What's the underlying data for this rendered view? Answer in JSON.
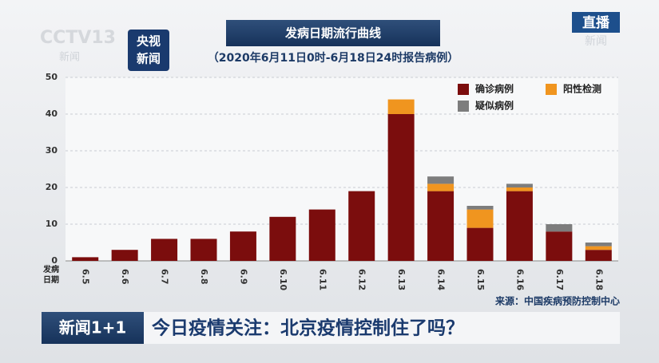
{
  "overlay": {
    "channel_logo": "CCTV13",
    "channel_sub": "新闻",
    "app_logo_top": "央视",
    "app_logo_bottom": "新闻",
    "live": "直播",
    "live_sub": "新闻",
    "program": "新闻1+1",
    "headline": "今日疫情关注：北京疫情控制住了吗？"
  },
  "chart_data": {
    "type": "bar",
    "stacked": true,
    "title": "发病日期流行曲线",
    "subtitle": "（2020年6月11日0时-6月18日24时报告病例）",
    "x_label": "发病日期",
    "source": "来源：中国疾病预防控制中心",
    "categories": [
      "6.5",
      "6.6",
      "6.7",
      "6.8",
      "6.9",
      "6.10",
      "6.11",
      "6.12",
      "6.13",
      "6.14",
      "6.15",
      "6.16",
      "6.17",
      "6.18"
    ],
    "series": [
      {
        "name": "确诊病例",
        "color": "#7b0d0d",
        "values": [
          1,
          3,
          6,
          6,
          8,
          12,
          14,
          19,
          40,
          19,
          9,
          19,
          8,
          3
        ]
      },
      {
        "name": "阳性检测",
        "color": "#f0951f",
        "values": [
          0,
          0,
          0,
          0,
          0,
          0,
          0,
          0,
          4,
          2,
          5,
          1,
          0,
          1
        ]
      },
      {
        "name": "疑似病例",
        "color": "#7d7d7d",
        "values": [
          0,
          0,
          0,
          0,
          0,
          0,
          0,
          0,
          0,
          2,
          1,
          1,
          2,
          1
        ]
      }
    ],
    "ylim": [
      0,
      50
    ],
    "yticks": [
      0,
      10,
      20,
      30,
      40,
      50
    ],
    "grid": true
  }
}
